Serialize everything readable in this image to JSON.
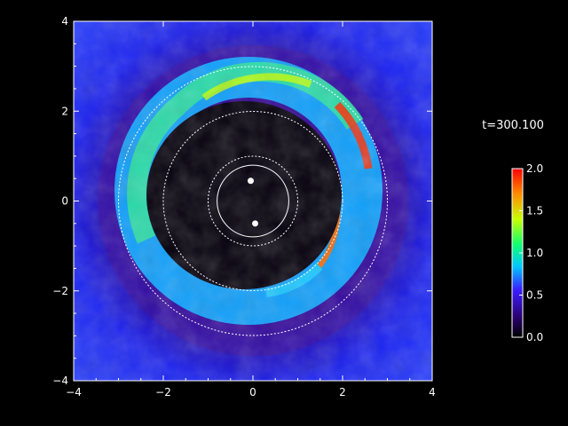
{
  "time_label": "t=300.100",
  "axes": {
    "x_ticks": [
      "−4",
      "−2",
      "0",
      "2",
      "4"
    ],
    "y_ticks": [
      "4",
      "2",
      "0",
      "−2",
      "−4"
    ],
    "x_range": [
      -4,
      4
    ],
    "y_range": [
      -4,
      4
    ]
  },
  "colorbar": {
    "ticks": [
      "2.0",
      "1.5",
      "1.0",
      "0.5",
      "0.0"
    ],
    "range": [
      0.0,
      2.0
    ],
    "colors": [
      "#000000",
      "#2a0070",
      "#3a1dff",
      "#00c8ff",
      "#10ff70",
      "#c8ff00",
      "#ff8c00",
      "#ff0000"
    ]
  },
  "circles": {
    "radii": [
      0.8,
      1.0,
      2.0,
      3.0
    ],
    "styles": [
      "solid",
      "dotted",
      "dotted",
      "dotted"
    ]
  },
  "stars": [
    {
      "x": -0.05,
      "y": 0.45
    },
    {
      "x": 0.05,
      "y": -0.5
    }
  ]
}
